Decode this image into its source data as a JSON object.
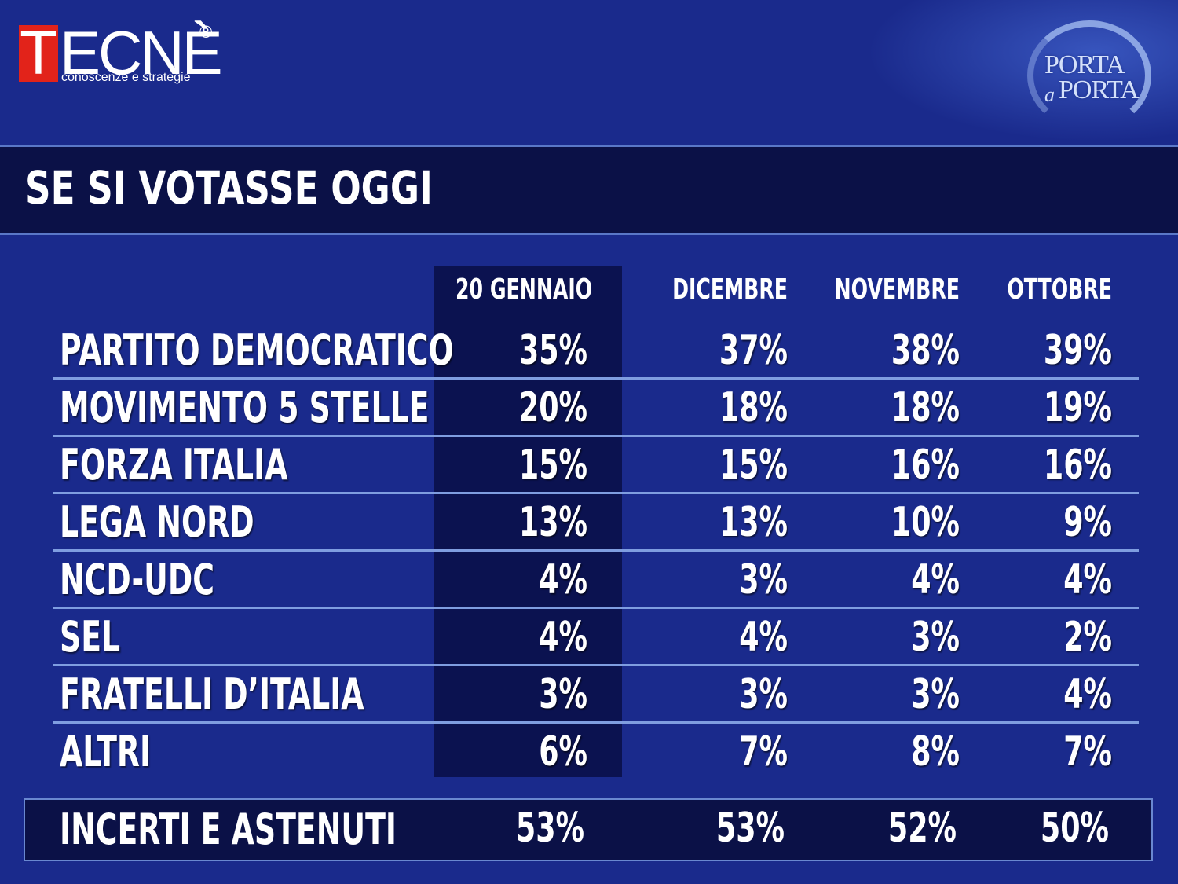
{
  "logo": {
    "brand_first": "T",
    "brand_rest": "ECNÈ",
    "registered": "®",
    "tagline": "conoscenze e strategie"
  },
  "show_logo": {
    "line1": "PORTA",
    "small": "a",
    "line2": "PORTA"
  },
  "title": "SE SI VOTASSE OGGI",
  "colors": {
    "background": "#1a2a8c",
    "band": "#0b1147",
    "highlight_column": "#0b1250",
    "separator": "#7f9de0",
    "logo_red": "#e2231a"
  },
  "chart_data": {
    "type": "table",
    "title": "SE SI VOTASSE OGGI",
    "columns": [
      "20 GENNAIO",
      "DICEMBRE",
      "NOVEMBRE",
      "OTTOBRE"
    ],
    "highlighted_column": "20 GENNAIO",
    "rows": [
      {
        "label": "PARTITO DEMOCRATICO",
        "values": [
          "35%",
          "37%",
          "38%",
          "39%"
        ]
      },
      {
        "label": "MOVIMENTO 5 STELLE",
        "values": [
          "20%",
          "18%",
          "18%",
          "19%"
        ]
      },
      {
        "label": "FORZA ITALIA",
        "values": [
          "15%",
          "15%",
          "16%",
          "16%"
        ]
      },
      {
        "label": "LEGA NORD",
        "values": [
          "13%",
          "13%",
          "10%",
          "9%"
        ]
      },
      {
        "label": "NCD-UDC",
        "values": [
          "4%",
          "3%",
          "4%",
          "4%"
        ]
      },
      {
        "label": "SEL",
        "values": [
          "4%",
          "4%",
          "3%",
          "2%"
        ]
      },
      {
        "label": "FRATELLI D’ITALIA",
        "values": [
          "3%",
          "3%",
          "3%",
          "4%"
        ]
      },
      {
        "label": "ALTRI",
        "values": [
          "6%",
          "7%",
          "8%",
          "7%"
        ]
      }
    ],
    "footer_row": {
      "label": "INCERTI E ASTENUTI",
      "values": [
        "53%",
        "53%",
        "52%",
        "50%"
      ]
    }
  }
}
